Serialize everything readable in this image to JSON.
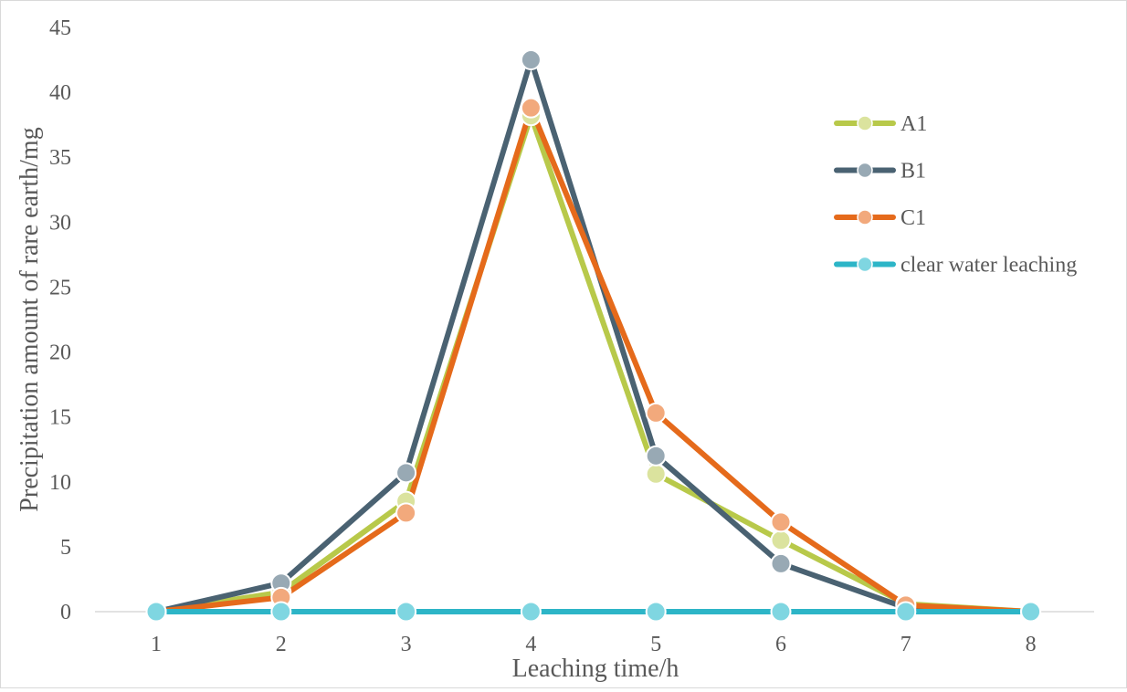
{
  "chart_data": {
    "type": "line",
    "title": "",
    "xlabel": "Leaching time/h",
    "ylabel": "Precipitation amount of rare earth/mg",
    "categories": [
      1,
      2,
      3,
      4,
      5,
      6,
      7,
      8
    ],
    "x_tick_labels": [
      "1",
      "2",
      "3",
      "4",
      "5",
      "6",
      "7",
      "8"
    ],
    "ylim": [
      0,
      45
    ],
    "y_ticks": [
      0,
      5,
      10,
      15,
      20,
      25,
      30,
      35,
      40,
      45
    ],
    "y_tick_labels": [
      "0",
      "5",
      "10",
      "15",
      "20",
      "25",
      "30",
      "35",
      "40",
      "45"
    ],
    "grid": false,
    "legend_position": "right",
    "series": [
      {
        "name": "A1",
        "values": [
          0,
          1.5,
          8.5,
          38.2,
          10.6,
          5.5,
          0.6,
          0
        ],
        "line_color": "#b8c94a",
        "marker_color": "#dbe39e"
      },
      {
        "name": "B1",
        "values": [
          0,
          2.2,
          10.7,
          42.5,
          12.0,
          3.7,
          0.3,
          0
        ],
        "line_color": "#4a6272",
        "marker_color": "#98a9b4"
      },
      {
        "name": "C1",
        "values": [
          0,
          1.1,
          7.6,
          38.8,
          15.3,
          6.9,
          0.5,
          0
        ],
        "line_color": "#e56a1b",
        "marker_color": "#f2a97c"
      },
      {
        "name": "clear water leaching",
        "values": [
          0,
          0,
          0,
          0,
          0,
          0,
          0,
          0
        ],
        "line_color": "#2db5c7",
        "marker_color": "#7fd6e1"
      }
    ]
  }
}
